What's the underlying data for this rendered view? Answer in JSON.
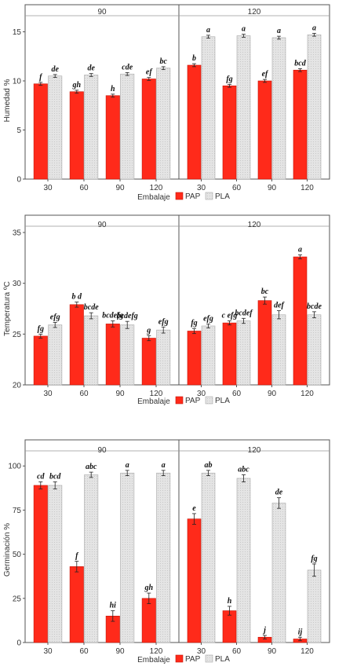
{
  "colors": {
    "PAP": "#ff2a1a",
    "PAP_stroke": "#c41408",
    "PLA": "#e4e4e4",
    "PLA_stroke": "#a8a8a8",
    "axis": "#555555"
  },
  "chart_data": [
    {
      "type": "bar",
      "ylabel": "Humedad %",
      "xlabel": "Embalaje",
      "ylim": [
        0,
        16
      ],
      "yticks": [
        0,
        5,
        10,
        15
      ],
      "legend": [
        "PAP",
        "PLA"
      ],
      "legend_position": "bottom",
      "facets": [
        {
          "label": "90",
          "categories": [
            "30",
            "60",
            "90",
            "120"
          ],
          "series": [
            {
              "name": "PAP",
              "values": [
                9.7,
                8.9,
                8.5,
                10.2
              ],
              "errors": [
                0.15,
                0.15,
                0.15,
                0.15
              ],
              "letters": [
                "f",
                "gh",
                "h",
                "ef"
              ]
            },
            {
              "name": "PLA",
              "values": [
                10.5,
                10.6,
                10.7,
                11.3
              ],
              "errors": [
                0.15,
                0.15,
                0.15,
                0.15
              ],
              "letters": [
                "de",
                "de",
                "cde",
                "bc"
              ]
            }
          ]
        },
        {
          "label": "120",
          "categories": [
            "30",
            "60",
            "90",
            "120"
          ],
          "series": [
            {
              "name": "PAP",
              "values": [
                11.6,
                9.5,
                10.0,
                11.1
              ],
              "errors": [
                0.15,
                0.15,
                0.15,
                0.15
              ],
              "letters": [
                "b",
                "fg",
                "ef",
                "bcd"
              ]
            },
            {
              "name": "PLA",
              "values": [
                14.5,
                14.6,
                14.4,
                14.7
              ],
              "errors": [
                0.15,
                0.15,
                0.15,
                0.15
              ],
              "letters": [
                "a",
                "a",
                "a",
                "a"
              ]
            }
          ]
        }
      ]
    },
    {
      "type": "bar",
      "ylabel": "Temperatura ºC",
      "xlabel": "Embalaje",
      "ylim": [
        20,
        35
      ],
      "yticks": [
        20,
        25,
        30,
        35
      ],
      "legend": [
        "PAP",
        "PLA"
      ],
      "legend_position": "bottom",
      "facets": [
        {
          "label": "90",
          "categories": [
            "30",
            "60",
            "90",
            "120"
          ],
          "series": [
            {
              "name": "PAP",
              "values": [
                24.8,
                27.9,
                26.0,
                24.6
              ],
              "errors": [
                0.2,
                0.25,
                0.3,
                0.25
              ],
              "letters": [
                "fg",
                "b d",
                "bcdefg",
                "g"
              ]
            },
            {
              "name": "PLA",
              "values": [
                25.9,
                26.8,
                25.9,
                25.4
              ],
              "errors": [
                0.25,
                0.3,
                0.35,
                0.3
              ],
              "letters": [
                "efg",
                "bcde",
                "bcdefg",
                "efg"
              ]
            }
          ]
        },
        {
          "label": "120",
          "categories": [
            "30",
            "60",
            "90",
            "120"
          ],
          "series": [
            {
              "name": "PAP",
              "values": [
                25.3,
                26.1,
                28.3,
                32.6
              ],
              "errors": [
                0.25,
                0.2,
                0.35,
                0.2
              ],
              "letters": [
                "fg",
                "c efg",
                "bc",
                "a"
              ]
            },
            {
              "name": "PLA",
              "values": [
                25.8,
                26.3,
                26.9,
                26.9
              ],
              "errors": [
                0.2,
                0.25,
                0.4,
                0.3
              ],
              "letters": [
                "efg",
                "bcdef",
                "def",
                "bcde"
              ]
            }
          ]
        }
      ]
    },
    {
      "type": "bar",
      "ylabel": "Germinación %",
      "xlabel": "Embalaje",
      "ylim": [
        0,
        105
      ],
      "yticks": [
        0,
        25,
        50,
        75,
        100
      ],
      "legend": [
        "PAP",
        "PLA"
      ],
      "legend_position": "bottom",
      "facets": [
        {
          "label": "90",
          "categories": [
            "30",
            "60",
            "90",
            "120"
          ],
          "series": [
            {
              "name": "PAP",
              "values": [
                89,
                43,
                15,
                25
              ],
              "errors": [
                2,
                3,
                3,
                3
              ],
              "letters": [
                "cd",
                "f",
                "hi",
                "gh"
              ]
            },
            {
              "name": "PLA",
              "values": [
                89,
                95,
                96,
                96
              ],
              "errors": [
                2,
                1.5,
                1.5,
                1.5
              ],
              "letters": [
                "bcd",
                "abc",
                "a",
                "a"
              ]
            }
          ]
        },
        {
          "label": "120",
          "categories": [
            "30",
            "60",
            "90",
            "120"
          ],
          "series": [
            {
              "name": "PAP",
              "values": [
                70,
                18,
                3,
                2
              ],
              "errors": [
                3,
                2.5,
                1,
                1
              ],
              "letters": [
                "e",
                "h",
                "j",
                "ij"
              ]
            },
            {
              "name": "PLA",
              "values": [
                96,
                93,
                79,
                41
              ],
              "errors": [
                1.5,
                2,
                3,
                3.5
              ],
              "letters": [
                "ab",
                "abc",
                "de",
                "fg"
              ]
            }
          ]
        }
      ]
    }
  ]
}
